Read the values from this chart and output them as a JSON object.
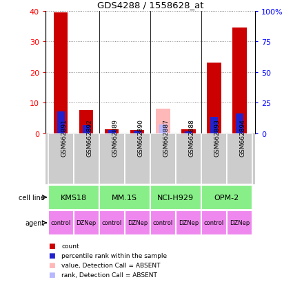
{
  "title": "GDS4288 / 1558628_at",
  "samples": [
    "GSM662891",
    "GSM662892",
    "GSM662889",
    "GSM662890",
    "GSM662887",
    "GSM662888",
    "GSM662893",
    "GSM662894"
  ],
  "count_values": [
    39.5,
    7.5,
    1.2,
    1.0,
    0.0,
    1.2,
    23.0,
    34.5
  ],
  "count_absent": [
    false,
    false,
    false,
    false,
    true,
    false,
    false,
    false
  ],
  "percentile_values": [
    7.2,
    2.6,
    1.0,
    0.7,
    0.0,
    0.6,
    5.2,
    6.5
  ],
  "percentile_absent": [
    false,
    false,
    false,
    false,
    true,
    false,
    false,
    false
  ],
  "absent_count_value": 8.0,
  "absent_percentile_value": 2.8,
  "cell_lines": [
    {
      "label": "KMS18",
      "span": [
        0,
        2
      ]
    },
    {
      "label": "MM.1S",
      "span": [
        2,
        4
      ]
    },
    {
      "label": "NCI-H929",
      "span": [
        4,
        6
      ]
    },
    {
      "label": "OPM-2",
      "span": [
        6,
        8
      ]
    }
  ],
  "agents": [
    "control",
    "DZNep",
    "control",
    "DZNep",
    "control",
    "DZNep",
    "control",
    "DZNep"
  ],
  "ylim_left": [
    0,
    40
  ],
  "yticks_left": [
    0,
    10,
    20,
    30,
    40
  ],
  "ytick_labels_left": [
    "0",
    "10",
    "20",
    "30",
    "40"
  ],
  "ytick_labels_right": [
    "0",
    "25",
    "50",
    "75",
    "100%"
  ],
  "bar_color_count": "#cc0000",
  "bar_color_percentile": "#2222cc",
  "bar_color_count_absent": "#ffb8b8",
  "bar_color_percentile_absent": "#b8b8ff",
  "cell_line_bg": "#88ee88",
  "agent_bg": "#ee88ee",
  "sample_bg": "#cccccc",
  "bar_width": 0.55,
  "percentile_bar_width": 0.3,
  "legend_items": [
    {
      "color": "#cc0000",
      "label": "count"
    },
    {
      "color": "#2222cc",
      "label": "percentile rank within the sample"
    },
    {
      "color": "#ffb8b8",
      "label": "value, Detection Call = ABSENT"
    },
    {
      "color": "#b8b8ff",
      "label": "rank, Detection Call = ABSENT"
    }
  ]
}
